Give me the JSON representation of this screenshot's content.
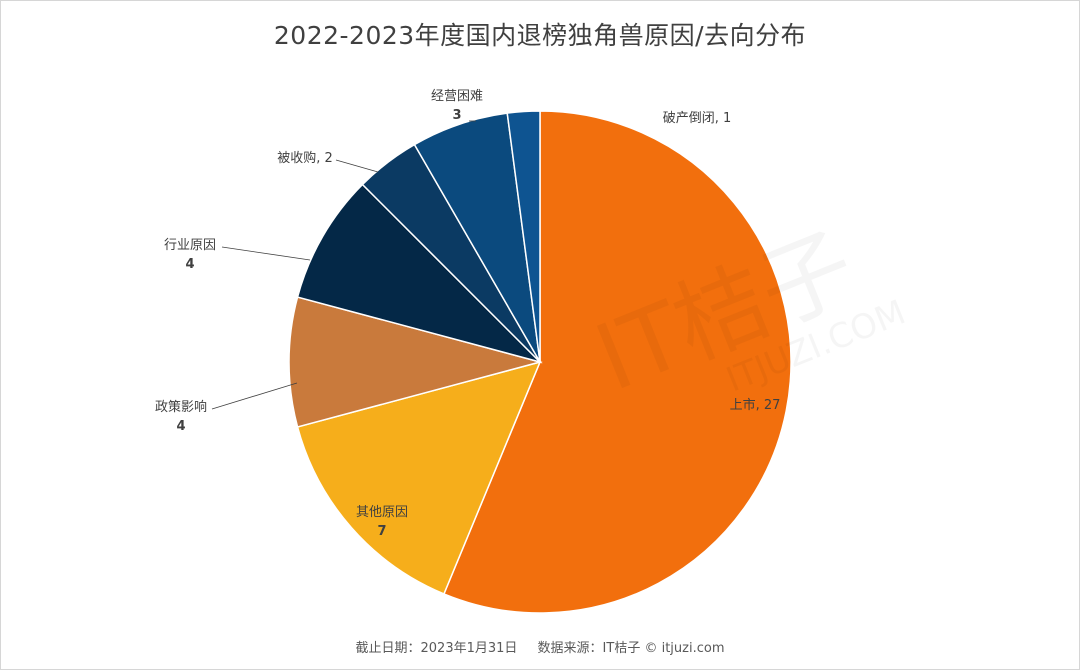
{
  "chart_data": {
    "type": "pie",
    "title": "2022-2023年度国内退榜独角兽原因/去向分布",
    "slices": [
      {
        "label": "上市",
        "value": 27,
        "color": "#F26F0D",
        "label_text": "上市, 27"
      },
      {
        "label": "其他原因",
        "value": 7,
        "color": "#F6AE1B",
        "label_text": "其他原因",
        "value_text": "7"
      },
      {
        "label": "政策影响",
        "value": 4,
        "color": "#C97A3C",
        "label_text": "政策影响",
        "value_text": "4"
      },
      {
        "label": "行业原因",
        "value": 4,
        "color": "#042847",
        "label_text": "行业原因",
        "value_text": "4"
      },
      {
        "label": "被收购",
        "value": 2,
        "color": "#0B3A63",
        "label_text": "被收购, 2"
      },
      {
        "label": "经营困难",
        "value": 3,
        "color": "#0B4A7E",
        "label_text": "经营困难",
        "value_text": "3"
      },
      {
        "label": "破产倒闭",
        "value": 1,
        "color": "#0E5491",
        "label_text": "破产倒闭, 1"
      }
    ],
    "start_angle": "12 o'clock",
    "direction": "clockwise",
    "legend": "none"
  },
  "footer": {
    "date": "截止日期：2023年1月31日",
    "source": "数据来源：IT桔子 © itjuzi.com"
  },
  "watermark": {
    "brand": "IT桔子",
    "url": "ITJUZI.COM"
  }
}
